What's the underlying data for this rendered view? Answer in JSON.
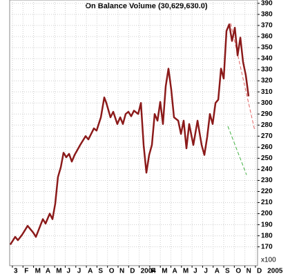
{
  "chart_data": {
    "type": "line",
    "title": "On Balance Volume (30,629,630.0)",
    "axis_note": "x100",
    "grid": true,
    "xlim": [
      -0.26,
      23.2
    ],
    "ylim": [
      153,
      393
    ],
    "xticks": [
      {
        "value": 0,
        "label": "3"
      },
      {
        "value": 1,
        "label": "F"
      },
      {
        "value": 2,
        "label": "M"
      },
      {
        "value": 3,
        "label": "A"
      },
      {
        "value": 4,
        "label": "M"
      },
      {
        "value": 5,
        "label": "J"
      },
      {
        "value": 6,
        "label": "J"
      },
      {
        "value": 7,
        "label": "A"
      },
      {
        "value": 8,
        "label": "S"
      },
      {
        "value": 9,
        "label": "O"
      },
      {
        "value": 10,
        "label": "N"
      },
      {
        "value": 11,
        "label": "D"
      },
      {
        "value": 12,
        "label": "2004"
      },
      {
        "value": 13,
        "label": "F"
      },
      {
        "value": 14,
        "label": "M"
      },
      {
        "value": 15,
        "label": "A"
      },
      {
        "value": 16,
        "label": "M"
      },
      {
        "value": 17,
        "label": "J"
      },
      {
        "value": 18,
        "label": "J"
      },
      {
        "value": 19,
        "label": "A"
      },
      {
        "value": 20,
        "label": "S"
      },
      {
        "value": 21,
        "label": "O"
      },
      {
        "value": 22,
        "label": "N"
      },
      {
        "value": 23,
        "label": "D"
      },
      {
        "value": 24,
        "label": "2005"
      }
    ],
    "yticks": [
      170,
      180,
      190,
      200,
      210,
      220,
      230,
      240,
      250,
      260,
      270,
      280,
      290,
      300,
      310,
      320,
      330,
      340,
      350,
      360,
      370,
      380,
      390
    ],
    "series": [
      {
        "color": "#8b1a1a",
        "x": [
          -0.2,
          0.26,
          0.52,
          0.92,
          1.44,
          1.96,
          2.22,
          2.88,
          3.14,
          3.53,
          3.79,
          4.05,
          4.31,
          4.58,
          4.84,
          5.1,
          5.36,
          5.62,
          5.88,
          6.41,
          6.93,
          7.19,
          7.71,
          7.97,
          8.37,
          8.69,
          8.89,
          9.28,
          9.54,
          9.93,
          10.2,
          10.46,
          10.72,
          10.98,
          11.24,
          11.5,
          11.9,
          12.16,
          12.42,
          12.68,
          12.94,
          13.2,
          13.46,
          13.73,
          13.99,
          14.25,
          14.51,
          14.77,
          15.03,
          15.29,
          15.69,
          15.95,
          16.21,
          16.47,
          16.73,
          17.12,
          17.52,
          17.91,
          18.17,
          18.43,
          18.69,
          18.95,
          19.22,
          19.48,
          19.74,
          20.0,
          20.26,
          20.52,
          20.78,
          21.05,
          21.31,
          21.57,
          21.83,
          22.09,
          22.35
        ],
        "values": [
          172,
          179,
          176,
          181,
          189,
          183,
          179,
          195,
          191,
          200,
          195,
          209,
          233,
          242,
          255,
          251,
          254,
          247,
          253,
          262,
          270,
          267,
          277,
          275,
          287,
          305,
          300,
          287,
          292,
          281,
          287,
          281,
          290,
          292,
          288,
          293,
          290,
          300,
          262,
          237,
          253,
          262,
          290,
          284,
          301,
          281,
          315,
          331,
          312,
          287,
          284,
          272,
          284,
          259,
          281,
          262,
          284,
          262,
          253,
          269,
          290,
          281,
          300,
          303,
          331,
          322,
          365,
          371,
          356,
          368,
          343,
          359,
          337,
          325,
          306
        ]
      }
    ],
    "trendlines": [
      {
        "color": "#e06060",
        "x": [
          20.65,
          22.94
        ],
        "values": [
          372,
          275
        ]
      },
      {
        "color": "#40b040",
        "x": [
          20.39,
          22.16
        ],
        "values": [
          279,
          235
        ]
      }
    ]
  }
}
